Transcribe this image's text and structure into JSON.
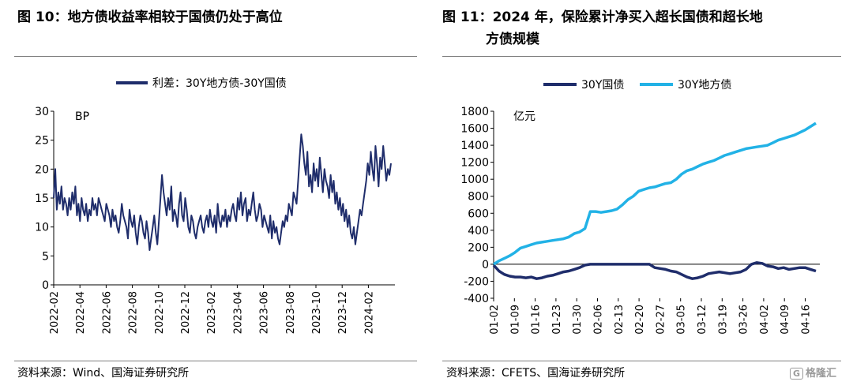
{
  "left_panel": {
    "title": "图 10：地方债收益率相较于国债仍处于高位",
    "source": "资料来源：Wind、国海证券研究所"
  },
  "right_panel": {
    "title_line1": "图 11：2024 年，保险累计净买入超长国债和超长地",
    "title_line2": "方债规模",
    "source": "资料来源：CFETS、国海证券研究所"
  },
  "watermark": {
    "box": "G",
    "text": "格隆汇"
  },
  "chart_data": [
    {
      "type": "line",
      "unit_label": "BP",
      "ylim": [
        0,
        30
      ],
      "yticks": [
        0,
        5,
        10,
        15,
        20,
        25,
        30
      ],
      "x_tick_labels": [
        "2022-02",
        "2022-04",
        "2022-06",
        "2022-08",
        "2022-10",
        "2022-12",
        "2023-02",
        "2023-04",
        "2023-06",
        "2023-08",
        "2023-10",
        "2023-12",
        "2024-02"
      ],
      "legend_position": "top",
      "grid": false,
      "series": [
        {
          "name": "利差：30Y地方债-30Y国债",
          "color": "#1f2d6b",
          "x_start": "2022-02",
          "x_end": "2024-04",
          "values": [
            15,
            20,
            13,
            16,
            14,
            17,
            13,
            15,
            14,
            12,
            15,
            13,
            16,
            14,
            17,
            12,
            14,
            11,
            15,
            13,
            12,
            14,
            11,
            13,
            12,
            15,
            13,
            14,
            12,
            15,
            14,
            13,
            12,
            11,
            14,
            13,
            12,
            10,
            13,
            11,
            12,
            10,
            9,
            11,
            14,
            12,
            11,
            10,
            8,
            13,
            11,
            10,
            12,
            9,
            7,
            10,
            12,
            11,
            9,
            8,
            11,
            9,
            6,
            8,
            10,
            12,
            9,
            7,
            11,
            15,
            19,
            16,
            14,
            12,
            15,
            13,
            17,
            11,
            13,
            12,
            10,
            14,
            16,
            12,
            11,
            15,
            13,
            10,
            9,
            12,
            11,
            9,
            8,
            10,
            11,
            12,
            10,
            9,
            11,
            12,
            10,
            13,
            11,
            10,
            12,
            9,
            14,
            11,
            10,
            12,
            11,
            13,
            10,
            12,
            11,
            13,
            14,
            12,
            11,
            15,
            13,
            16,
            12,
            14,
            15,
            11,
            13,
            12,
            14,
            16,
            13,
            11,
            12,
            14,
            13,
            10,
            12,
            11,
            10,
            9,
            12,
            8,
            11,
            9,
            10,
            8,
            7,
            9,
            11,
            10,
            12,
            11,
            14,
            13,
            12,
            16,
            15,
            14,
            18,
            22,
            26,
            24,
            21,
            19,
            23,
            17,
            19,
            16,
            21,
            18,
            20,
            17,
            22,
            19,
            16,
            20,
            18,
            17,
            15,
            19,
            16,
            18,
            14,
            16,
            13,
            15,
            12,
            14,
            11,
            13,
            10,
            12,
            9,
            8,
            10,
            7,
            9,
            11,
            13,
            12,
            14,
            16,
            18,
            21,
            19,
            23,
            20,
            18,
            24,
            21,
            17,
            22,
            20,
            24,
            21,
            18,
            20,
            19,
            21
          ]
        }
      ]
    },
    {
      "type": "line",
      "unit_label": "亿元",
      "ylim": [
        -400,
        1800
      ],
      "yticks": [
        -400,
        -200,
        0,
        200,
        400,
        600,
        800,
        1000,
        1200,
        1400,
        1600,
        1800
      ],
      "x_tick_labels": [
        "01-02",
        "01-09",
        "01-16",
        "01-23",
        "01-30",
        "02-06",
        "02-13",
        "02-20",
        "02-27",
        "03-05",
        "03-12",
        "03-19",
        "03-26",
        "04-02",
        "04-09",
        "04-16"
      ],
      "legend_position": "top",
      "grid": false,
      "series": [
        {
          "name": "30Y国债",
          "color": "#1f2d6b",
          "values": [
            -10,
            -80,
            -120,
            -140,
            -150,
            -150,
            -160,
            -150,
            -170,
            -160,
            -140,
            -130,
            -110,
            -90,
            -80,
            -60,
            -40,
            -10,
            0,
            0,
            0,
            0,
            0,
            0,
            0,
            0,
            0,
            0,
            0,
            0,
            -40,
            -50,
            -60,
            -80,
            -90,
            -120,
            -150,
            -170,
            -160,
            -140,
            -110,
            -100,
            -90,
            -100,
            -110,
            -100,
            -90,
            -60,
            0,
            20,
            10,
            -20,
            -30,
            -50,
            -40,
            -60,
            -50,
            -40,
            -40,
            -60,
            -80
          ]
        },
        {
          "name": "30Y地方债",
          "color": "#22b2e6",
          "values": [
            0,
            40,
            70,
            100,
            140,
            190,
            210,
            230,
            250,
            260,
            270,
            280,
            290,
            300,
            320,
            360,
            380,
            420,
            620,
            620,
            610,
            620,
            630,
            650,
            700,
            760,
            800,
            860,
            880,
            900,
            910,
            930,
            950,
            960,
            1000,
            1060,
            1100,
            1120,
            1150,
            1180,
            1200,
            1220,
            1250,
            1280,
            1300,
            1320,
            1340,
            1360,
            1370,
            1380,
            1390,
            1400,
            1430,
            1460,
            1480,
            1500,
            1520,
            1550,
            1580,
            1620,
            1660
          ]
        }
      ]
    }
  ]
}
